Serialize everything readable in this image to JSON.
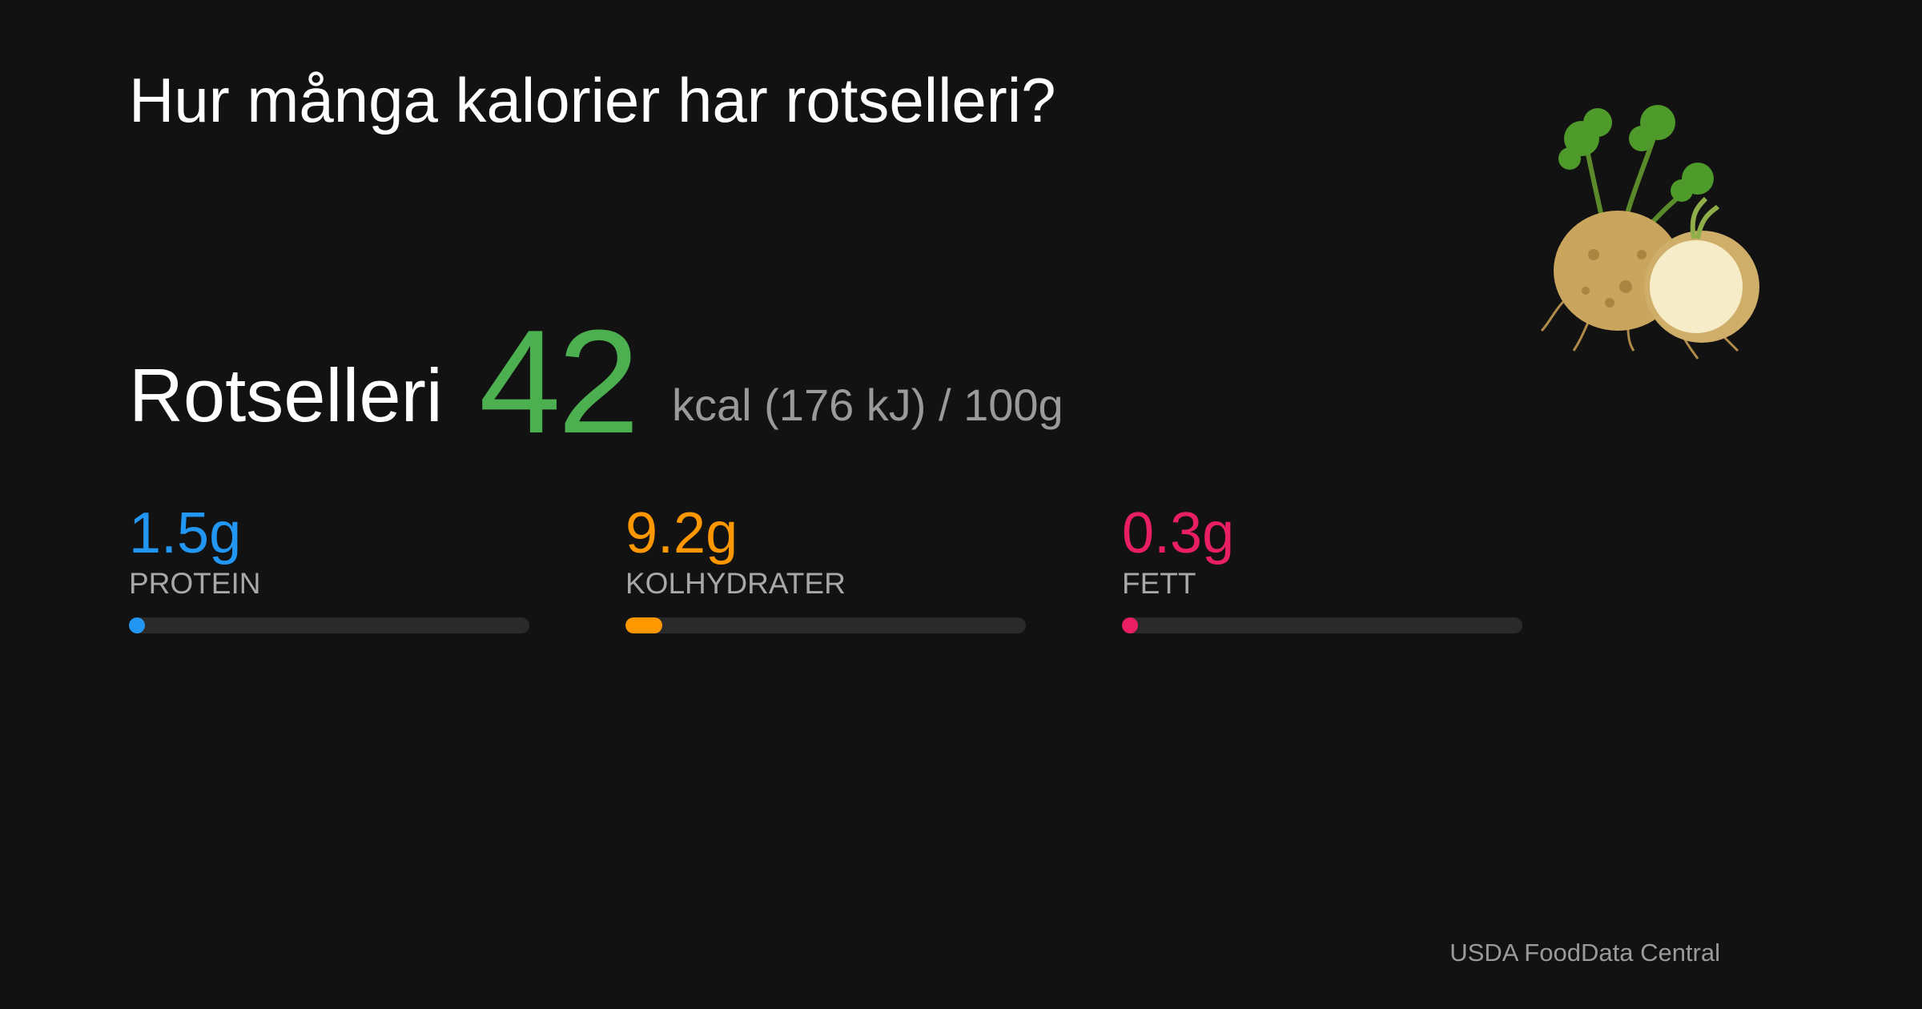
{
  "title": "Hur många kalorier har rotselleri?",
  "food": {
    "name": "Rotselleri",
    "kcal": 42,
    "unit_text": "kcal (176 kJ) / 100g",
    "kcal_color": "#4caf50"
  },
  "macros": {
    "scale": [
      0,
      100
    ],
    "items": [
      {
        "value": 1.5,
        "value_label": "1.5g",
        "name": "PROTEIN",
        "color": "#2196f3"
      },
      {
        "value": 9.2,
        "value_label": "9.2g",
        "name": "KOLHYDRATER",
        "color": "#ff9800"
      },
      {
        "value": 0.3,
        "value_label": "0.3g",
        "name": "FETT",
        "color": "#e91e63"
      }
    ]
  },
  "source": "USDA FoodData Central"
}
